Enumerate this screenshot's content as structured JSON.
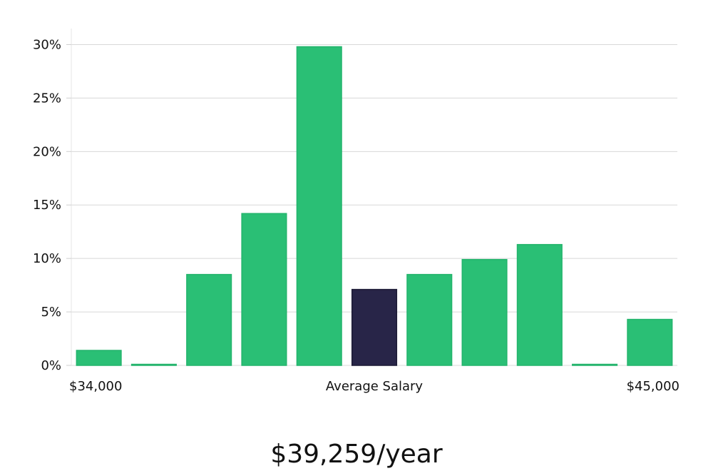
{
  "chart_data": {
    "type": "bar",
    "categories": [
      "1",
      "2",
      "3",
      "4",
      "5",
      "6",
      "7",
      "8",
      "9",
      "10",
      "11"
    ],
    "values": [
      1.4,
      0.1,
      8.5,
      14.2,
      29.8,
      7.1,
      8.5,
      9.9,
      11.3,
      0.1,
      4.3
    ],
    "highlight_index": 5,
    "x_tick_labels": {
      "left": "$34,000",
      "center": "Average Salary",
      "right": "$45,000"
    },
    "y_ticks": [
      0,
      5,
      10,
      15,
      20,
      25,
      30
    ],
    "y_tick_suffix": "%",
    "ylim": [
      0,
      31.5
    ],
    "grid": true,
    "colors": {
      "bar": "#2abf75",
      "bar_stroke": "#23b46c",
      "highlight": "#282548",
      "highlight_stroke": "#1c1a35",
      "grid": "#d8d8d8",
      "text": "#111111"
    }
  },
  "summary": {
    "value": "$39,259/year"
  }
}
